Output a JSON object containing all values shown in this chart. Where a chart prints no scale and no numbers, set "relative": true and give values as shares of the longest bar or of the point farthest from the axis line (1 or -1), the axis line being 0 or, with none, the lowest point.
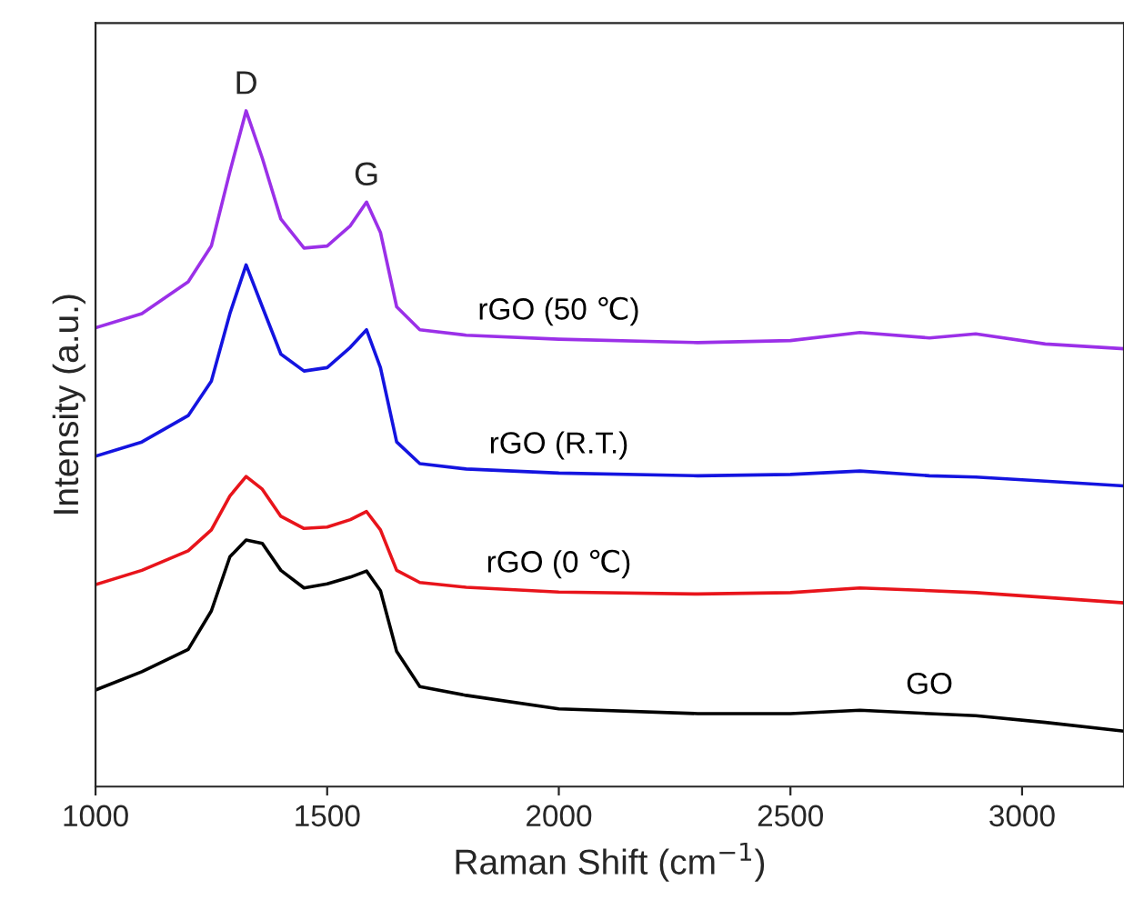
{
  "chart_data": {
    "type": "line",
    "relative": true,
    "xlabel": "Raman Shift (cm$^{−1}$)",
    "ylabel": "Intensity (a.u.)",
    "x": [
      1000,
      1100,
      1200,
      1250,
      1290,
      1325,
      1360,
      1400,
      1450,
      1500,
      1550,
      1585,
      1615,
      1650,
      1700,
      1800,
      2000,
      2300,
      2500,
      2650,
      2800,
      2900,
      3050,
      3220
    ],
    "xlim": [
      1000,
      3220
    ],
    "xticks": [
      1000,
      1500,
      2000,
      2500,
      3000
    ],
    "tick_labels": "x",
    "legend": false,
    "grid": false,
    "series": [
      {
        "name": "GO",
        "color": "#000000",
        "values": [
          0.143,
          0.17,
          0.203,
          0.26,
          0.34,
          0.365,
          0.36,
          0.32,
          0.294,
          0.3,
          0.31,
          0.319,
          0.29,
          0.2,
          0.148,
          0.135,
          0.115,
          0.108,
          0.108,
          0.113,
          0.108,
          0.105,
          0.095,
          0.082
        ]
      },
      {
        "name": "rGO (0 ℃)",
        "color": "#e8141b",
        "values": [
          0.299,
          0.32,
          0.349,
          0.38,
          0.43,
          0.459,
          0.44,
          0.4,
          0.382,
          0.384,
          0.395,
          0.407,
          0.38,
          0.32,
          0.302,
          0.295,
          0.288,
          0.285,
          0.287,
          0.294,
          0.29,
          0.287,
          0.28,
          0.272
        ]
      },
      {
        "name": "rGO (R.T.)",
        "color": "#1414e0",
        "values": [
          0.489,
          0.51,
          0.549,
          0.6,
          0.7,
          0.772,
          0.71,
          0.64,
          0.615,
          0.62,
          0.65,
          0.676,
          0.62,
          0.51,
          0.478,
          0.47,
          0.464,
          0.46,
          0.462,
          0.467,
          0.46,
          0.458,
          0.452,
          0.445
        ]
      },
      {
        "name": "rGO (50 ℃)",
        "color": "#9b30e8",
        "values": [
          0.679,
          0.7,
          0.747,
          0.8,
          0.91,
          1.0,
          0.93,
          0.84,
          0.797,
          0.8,
          0.83,
          0.865,
          0.82,
          0.71,
          0.676,
          0.668,
          0.662,
          0.657,
          0.66,
          0.672,
          0.664,
          0.67,
          0.655,
          0.648
        ]
      }
    ],
    "annotations": [
      {
        "text": "D",
        "x": 1325,
        "y": 1.0
      },
      {
        "text": "G",
        "x": 1585,
        "y": 0.865
      }
    ]
  }
}
